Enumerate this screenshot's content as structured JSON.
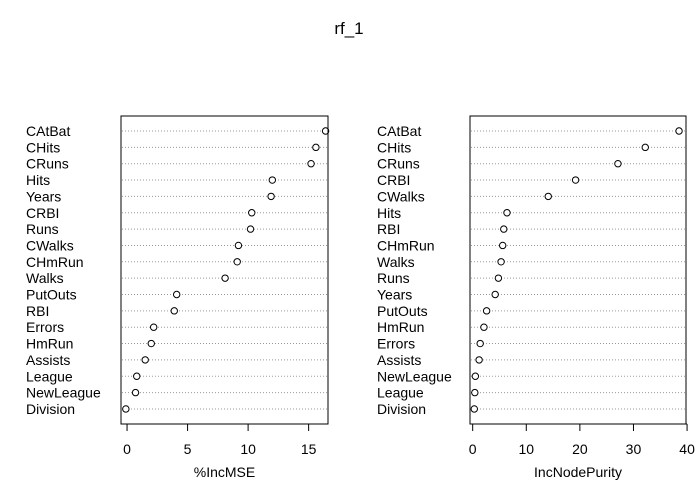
{
  "chart_data": {
    "title": "rf_1",
    "type": "scatter",
    "panels": [
      {
        "xlabel": "%IncMSE",
        "xticks": [
          0,
          5,
          10,
          15
        ],
        "xlim": [
          -0.5,
          16.6
        ],
        "variables": [
          "CAtBat",
          "CHits",
          "CRuns",
          "Hits",
          "Years",
          "CRBI",
          "Runs",
          "CWalks",
          "CHmRun",
          "Walks",
          "PutOuts",
          "RBI",
          "Errors",
          "HmRun",
          "Assists",
          "League",
          "NewLeague",
          "Division"
        ],
        "values": [
          16.4,
          15.6,
          15.2,
          12.0,
          11.9,
          10.3,
          10.2,
          9.2,
          9.1,
          8.1,
          4.1,
          3.9,
          2.2,
          2.0,
          1.5,
          0.8,
          0.7,
          -0.1
        ]
      },
      {
        "xlabel": "IncNodePurity",
        "xticks": [
          0,
          10,
          20,
          30,
          40
        ],
        "xlim": [
          -0.5,
          39.8
        ],
        "variables": [
          "CAtBat",
          "CHits",
          "CRuns",
          "CRBI",
          "CWalks",
          "Hits",
          "RBI",
          "CHmRun",
          "Walks",
          "Runs",
          "Years",
          "PutOuts",
          "HmRun",
          "Errors",
          "Assists",
          "NewLeague",
          "League",
          "Division"
        ],
        "values": [
          38.5,
          32.2,
          27.1,
          19.2,
          14.1,
          6.4,
          5.8,
          5.6,
          5.3,
          4.8,
          4.2,
          2.6,
          2.1,
          1.4,
          1.2,
          0.5,
          0.4,
          0.3
        ]
      }
    ]
  }
}
